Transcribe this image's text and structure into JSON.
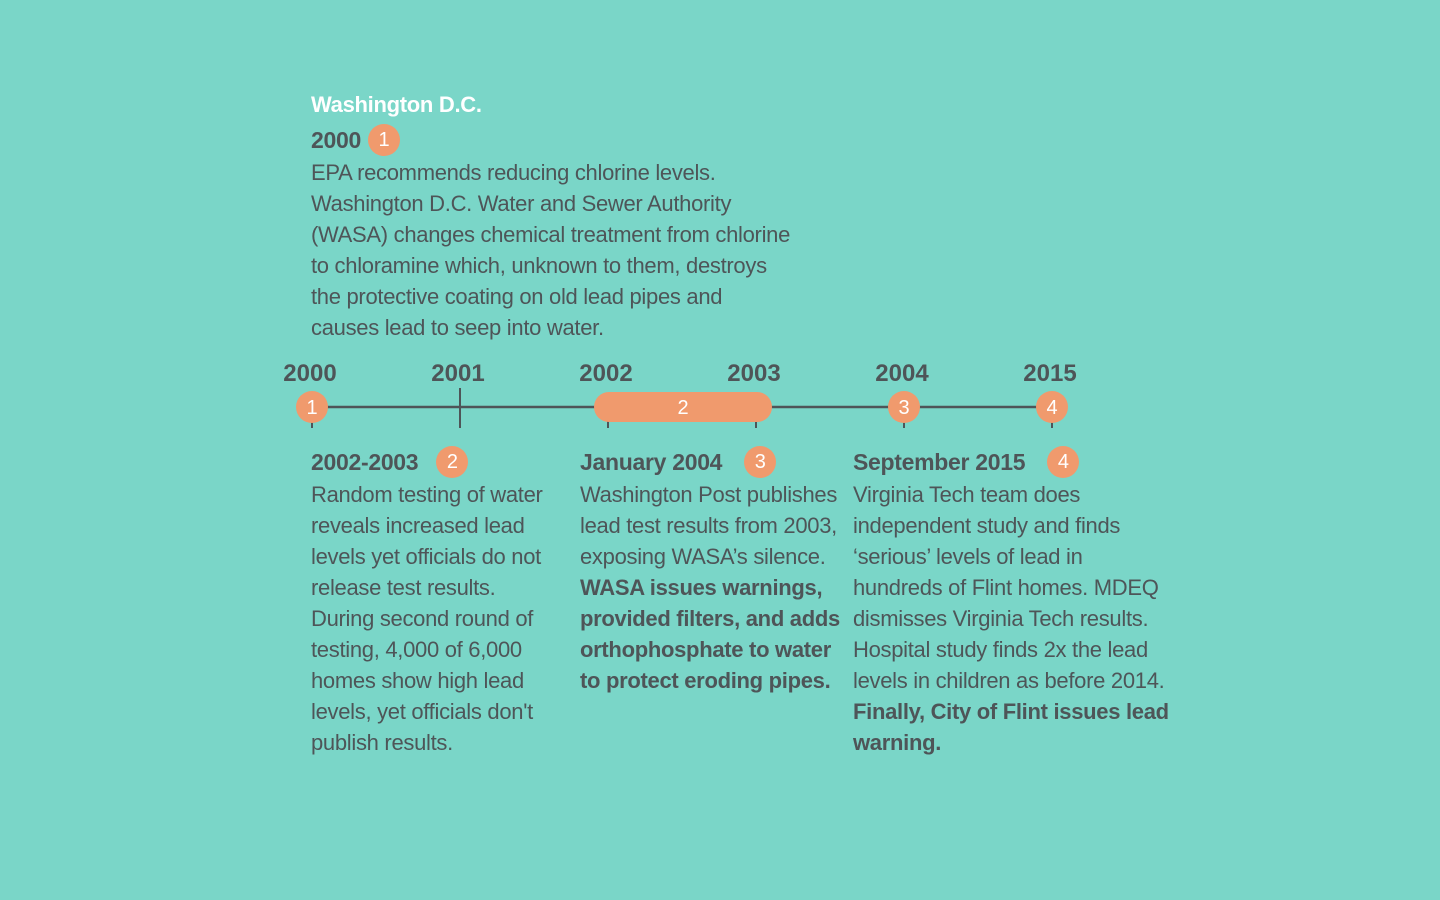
{
  "location": "Washington D.C.",
  "colors": {
    "background": "#7ad6c8",
    "accent": "#f09a6d",
    "text": "#4e5558",
    "heading": "#ffffff"
  },
  "timeline": {
    "ticks": [
      "2000",
      "2001",
      "2002",
      "2003",
      "2004",
      "2015"
    ],
    "markers": [
      {
        "label": "1",
        "at": "2000"
      },
      {
        "label": "2",
        "from": "2002",
        "to": "2003"
      },
      {
        "label": "3",
        "at": "2004"
      },
      {
        "label": "4",
        "at": "2015"
      }
    ]
  },
  "events": [
    {
      "title": "2000",
      "badge": "1",
      "body": "EPA recommends reducing chlorine levels. Washington D.C. Water and Sewer Authority (WASA) changes chemical treatment from chlorine to chloramine which, unknown to them, destroys the protective coating on old lead pipes and causes lead to seep into water.",
      "emphasis": ""
    },
    {
      "title": "2002-2003",
      "badge": "2",
      "body": "Random testing of water reveals increased lead levels yet officials do not release test results. During second round of testing, 4,000 of 6,000 homes show high lead levels, yet officials don't publish results.",
      "emphasis": ""
    },
    {
      "title": "January 2004",
      "badge": "3",
      "body": "Washington Post publishes lead test results from 2003, exposing WASA’s silence.",
      "emphasis": "WASA issues warnings, provided filters, and adds orthophosphate to water to protect eroding pipes."
    },
    {
      "title": "September 2015",
      "badge": "4",
      "body": "Virginia Tech team does independent study and finds ‘serious’ levels of lead in hundreds of Flint homes. MDEQ dismisses Virginia Tech results.  Hospital study finds 2x the lead levels in children as before 2014.",
      "emphasis": "Finally, City of Flint issues lead warning."
    }
  ]
}
